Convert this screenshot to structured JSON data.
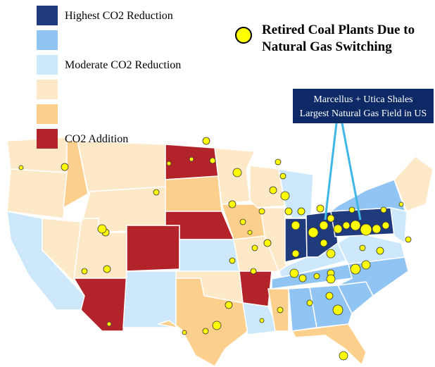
{
  "legend": {
    "items": [
      {
        "label": "Highest CO2 Reduction",
        "color": "#1f3b7d"
      },
      {
        "color": "#90c4f3"
      },
      {
        "label": "Moderate CO2 Reduction",
        "color": "#cde8fa"
      },
      {
        "color": "#fde9c8"
      },
      {
        "color": "#fdcf8c"
      },
      {
        "label": "CO2 Addition",
        "color": "#b3232a"
      }
    ]
  },
  "marker_legend": {
    "lines": [
      "Retired Coal Plants Due to",
      "Natural Gas Switching"
    ]
  },
  "callout": {
    "lines": [
      "Marcellus + Utica Shales",
      "Largest Natural Gas Field in US"
    ]
  }
}
